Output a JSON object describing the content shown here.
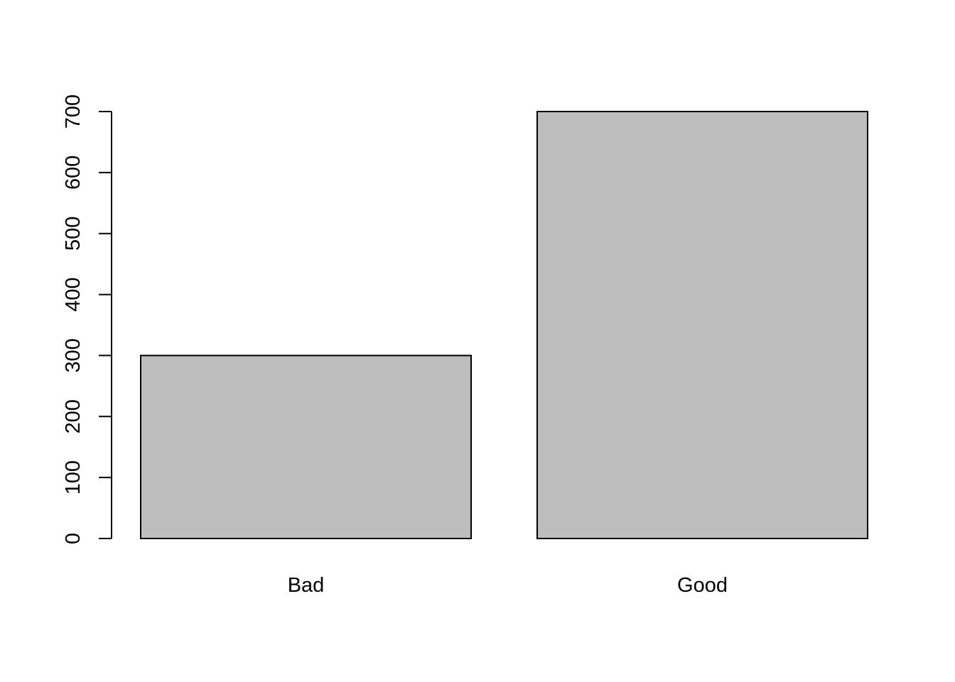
{
  "chart_data": {
    "type": "bar",
    "categories": [
      "Bad",
      "Good"
    ],
    "values": [
      300,
      700
    ],
    "yticks": [
      0,
      100,
      200,
      300,
      400,
      500,
      600,
      700
    ],
    "ylim": [
      0,
      700
    ],
    "grid": false,
    "bar_color": "#bebebe",
    "border_color": "#000000"
  }
}
